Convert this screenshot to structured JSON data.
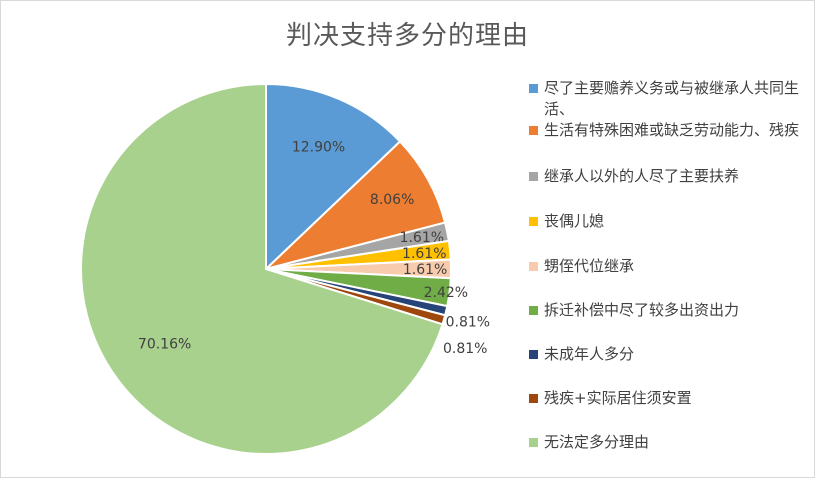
{
  "chart_data": {
    "type": "pie",
    "title": "判决支持多分的理由",
    "categories": [
      "尽了主要赡养义务或与被继承人共同生活、",
      "生活有特殊困难或缺乏劳动能力、残疾",
      "继承人以外的人尽了主要扶养",
      "丧偶儿媳",
      "甥侄代位继承",
      "拆迁补偿中尽了较多出资出力",
      "未成年人多分",
      "残疾+实际居住须安置",
      "无法定多分理由"
    ],
    "values": [
      12.9,
      8.06,
      1.61,
      1.61,
      1.61,
      2.42,
      0.81,
      0.81,
      70.16
    ],
    "data_labels": [
      "12.90%",
      "8.06%",
      "1.61%",
      "1.61%",
      "1.61%",
      "2.42%",
      "0.81%",
      "0.81%",
      "70.16%"
    ],
    "colors": [
      "#5b9bd5",
      "#ed7d31",
      "#a5a5a5",
      "#ffc000",
      "#f8cbad",
      "#70ad47",
      "#264478",
      "#9e480e",
      "#a9d18e"
    ],
    "legend_position": "right",
    "start_angle": "12 o'clock, clockwise"
  }
}
